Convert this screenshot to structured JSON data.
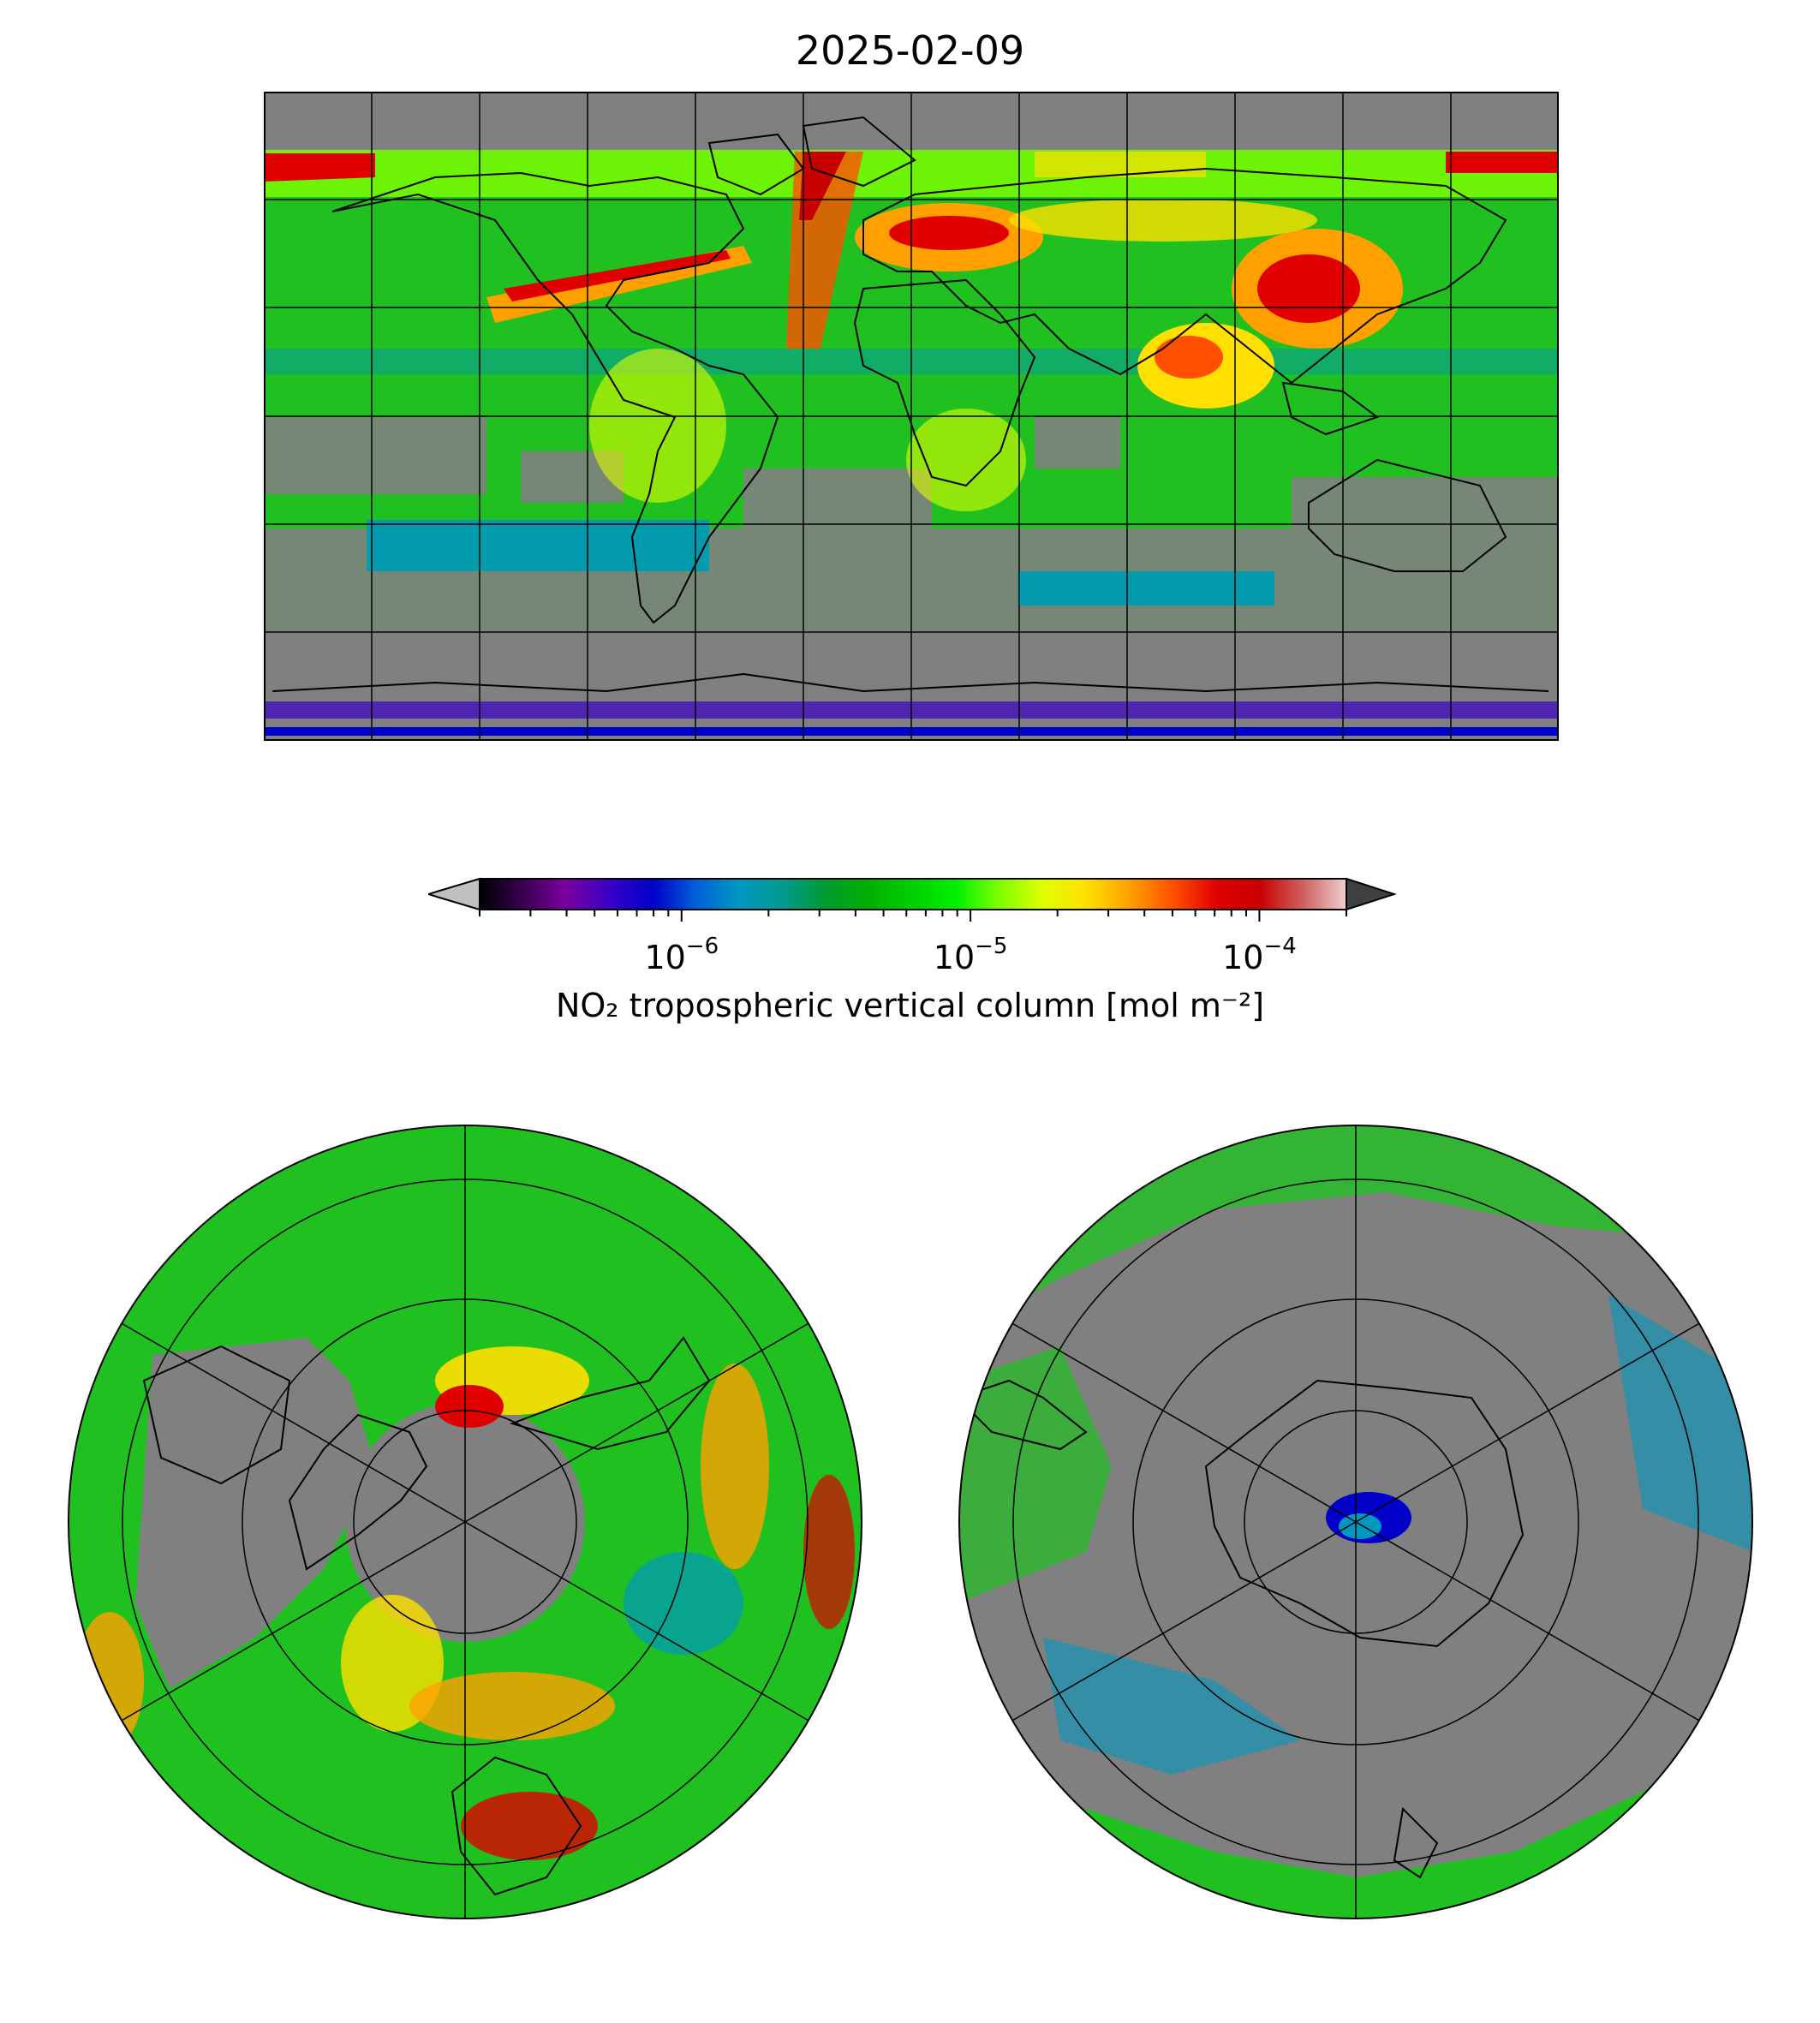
{
  "title": "2025-02-09",
  "colorbar": {
    "label": "NO₂ tropospheric vertical column [mol m⁻²]",
    "scale": "log",
    "range": [
      2e-07,
      0.0002
    ],
    "extend": "both",
    "ticks": [
      {
        "value": 1e-06,
        "base": "10",
        "exp": "−6"
      },
      {
        "value": 1e-05,
        "base": "10",
        "exp": "−5"
      },
      {
        "value": 0.0001,
        "base": "10",
        "exp": "−4"
      }
    ],
    "colors": [
      "#000000",
      "#3a0050",
      "#7b00a0",
      "#3a00c8",
      "#0000c8",
      "#0060d8",
      "#0098c0",
      "#009a90",
      "#009a30",
      "#00b000",
      "#00d000",
      "#00f000",
      "#80ff00",
      "#e0ff00",
      "#ffe000",
      "#ffa000",
      "#ff5000",
      "#e00000",
      "#c80000",
      "#d06060",
      "#f0d0d0"
    ],
    "under_color": "#c0c0c0",
    "over_color": "#404040"
  },
  "maps": {
    "global": {
      "projection": "equirectangular",
      "background": "#808080"
    },
    "north_polar": {
      "projection": "north-polar-stereographic",
      "background": "#808080"
    },
    "south_polar": {
      "projection": "south-polar-stereographic",
      "background": "#808080"
    }
  }
}
